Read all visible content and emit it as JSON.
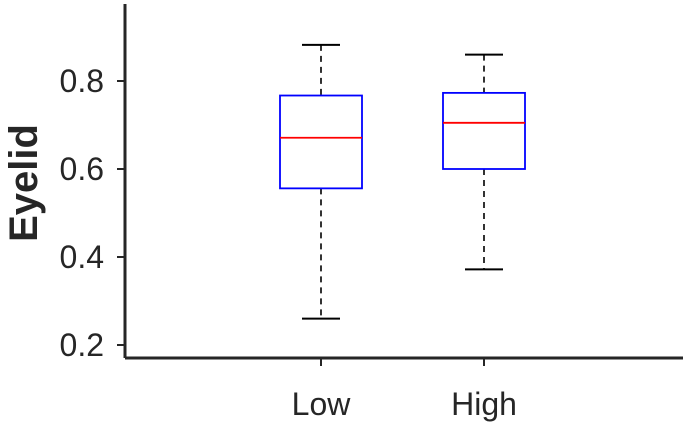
{
  "chart_data": {
    "type": "box",
    "ylabel": "Eyelid",
    "xlabel": "",
    "title": "",
    "ylim": [
      0.175,
      0.975
    ],
    "yticks": [
      0.2,
      0.4,
      0.6,
      0.8
    ],
    "ytick_labels": [
      "0.2",
      "0.4",
      "0.6",
      "0.8"
    ],
    "categories": [
      "Low",
      "High"
    ],
    "boxes": [
      {
        "category": "Low",
        "whisker_low": 0.26,
        "q1": 0.556,
        "median": 0.671,
        "q3": 0.767,
        "whisker_high": 0.882
      },
      {
        "category": "High",
        "whisker_low": 0.372,
        "q1": 0.6,
        "median": 0.705,
        "q3": 0.773,
        "whisker_high": 0.86
      }
    ],
    "colors": {
      "box": "#0000ff",
      "median": "#ff0000",
      "whisker": "#000000",
      "axis": "#262626"
    },
    "grid": false,
    "legend": "none"
  }
}
